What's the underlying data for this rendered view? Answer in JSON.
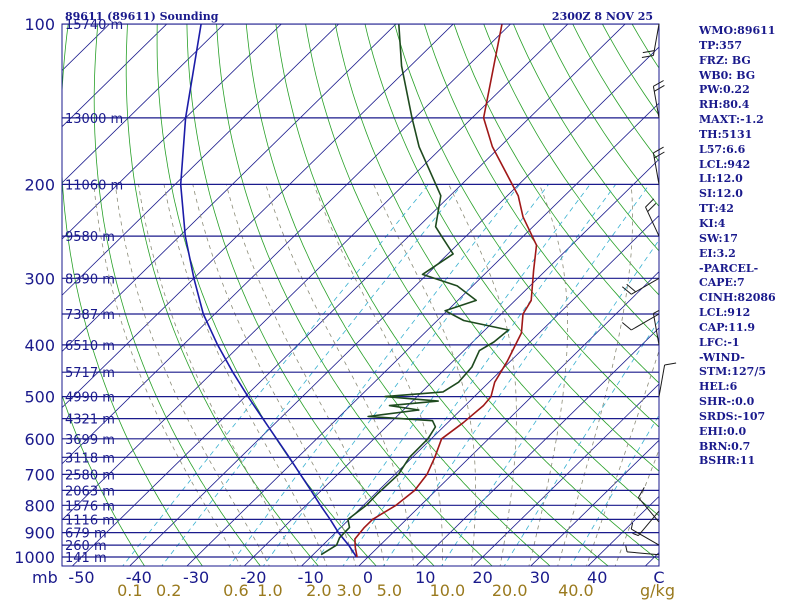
{
  "header": {
    "station": "89611 (89611) Sounding",
    "time": "2300Z  8 NOV 25"
  },
  "units": {
    "pressure": "mb",
    "mixing_ratio": "g/kg"
  },
  "stats": [
    "WMO:89611",
    "TP:357",
    "FRZ: BG",
    "WB0: BG",
    "PW:0.22",
    "RH:80.4",
    "MAXT:-1.2",
    "TH:5131",
    "L57:6.6",
    "LCL:942",
    "LI:12.0",
    "SI:12.0",
    "TT:42",
    "KI:4",
    "SW:17",
    "EI:3.2",
    "-PARCEL-",
    "CAPE:7",
    "CINH:82086",
    "LCL:912",
    "CAP:11.9",
    "LFC:-1",
    "-WIND-",
    "STM:127/5",
    "HEL:6",
    "SHR-:0.0",
    "SRDS:-107",
    "EHI:0.0",
    "BRN:0.7",
    "BSHR:11"
  ],
  "chart_data": {
    "type": "skew-t",
    "title": "89611 (89611) Sounding",
    "valid_time": "2300Z  8 NOV 25",
    "xlabel": "Temperature (C)",
    "ylabel": "Pressure (mb)",
    "pressure_ticks": [
      "100",
      "200",
      "300",
      "400",
      "500",
      "600",
      "700",
      "800",
      "900",
      "1000"
    ],
    "temperature_ticks": [
      "-50",
      "-40",
      "-30",
      "-20",
      "-10",
      "0",
      "10",
      "20",
      "30",
      "40"
    ],
    "mixing_ratio_ticks": [
      "0.1",
      "0.2",
      "0.6",
      "1.0",
      "2.0",
      "3.0",
      "5.0",
      "10.0",
      "20.0",
      "40.0"
    ],
    "height_labels": [
      {
        "p": 100,
        "label": "15740 m"
      },
      {
        "p": 150,
        "label": "13000 m"
      },
      {
        "p": 200,
        "label": "11060 m"
      },
      {
        "p": 250,
        "label": "9580 m"
      },
      {
        "p": 300,
        "label": "8390 m"
      },
      {
        "p": 350,
        "label": "7387 m"
      },
      {
        "p": 400,
        "label": "6510 m"
      },
      {
        "p": 450,
        "label": "5717 m"
      },
      {
        "p": 500,
        "label": "4990 m"
      },
      {
        "p": 550,
        "label": "4321 m"
      },
      {
        "p": 600,
        "label": "3699 m"
      },
      {
        "p": 650,
        "label": "3118 m"
      },
      {
        "p": 700,
        "label": "2580 m"
      },
      {
        "p": 750,
        "label": "2063 m"
      },
      {
        "p": 800,
        "label": "1576 m"
      },
      {
        "p": 850,
        "label": "1116 m"
      },
      {
        "p": 900,
        "label": "679 m"
      },
      {
        "p": 950,
        "label": "260 m"
      },
      {
        "p": 1000,
        "label": "141 m"
      }
    ],
    "temperature_profile": [
      {
        "p": 1000,
        "t": -1.9
      },
      {
        "p": 960,
        "t": -3.9
      },
      {
        "p": 925,
        "t": -5.5
      },
      {
        "p": 880,
        "t": -5.9
      },
      {
        "p": 850,
        "t": -5.9
      },
      {
        "p": 800,
        "t": -4.3
      },
      {
        "p": 750,
        "t": -3.7
      },
      {
        "p": 700,
        "t": -4.4
      },
      {
        "p": 650,
        "t": -6.1
      },
      {
        "p": 600,
        "t": -8.2
      },
      {
        "p": 560,
        "t": -7.3
      },
      {
        "p": 520,
        "t": -6.8
      },
      {
        "p": 500,
        "t": -7.1
      },
      {
        "p": 470,
        "t": -9.0
      },
      {
        "p": 430,
        "t": -10.5
      },
      {
        "p": 380,
        "t": -13.1
      },
      {
        "p": 350,
        "t": -16.2
      },
      {
        "p": 330,
        "t": -17.2
      },
      {
        "p": 290,
        "t": -22.1
      },
      {
        "p": 260,
        "t": -26.1
      },
      {
        "p": 230,
        "t": -33.5
      },
      {
        "p": 210,
        "t": -38.1
      },
      {
        "p": 170,
        "t": -51.3
      },
      {
        "p": 150,
        "t": -58.0
      },
      {
        "p": 100,
        "t": -71.5
      }
    ],
    "dewpoint_profile": [
      {
        "p": 990,
        "t": -8.6
      },
      {
        "p": 950,
        "t": -7.6
      },
      {
        "p": 920,
        "t": -8.4
      },
      {
        "p": 880,
        "t": -8.5
      },
      {
        "p": 850,
        "t": -10.2
      },
      {
        "p": 800,
        "t": -9.5
      },
      {
        "p": 760,
        "t": -9.6
      },
      {
        "p": 700,
        "t": -9.4
      },
      {
        "p": 650,
        "t": -10.5
      },
      {
        "p": 600,
        "t": -10.6
      },
      {
        "p": 570,
        "t": -11.4
      },
      {
        "p": 555,
        "t": -13.0
      },
      {
        "p": 545,
        "t": -25.0
      },
      {
        "p": 530,
        "t": -17.3
      },
      {
        "p": 520,
        "t": -23.2
      },
      {
        "p": 510,
        "t": -15.5
      },
      {
        "p": 500,
        "t": -25.6
      },
      {
        "p": 490,
        "t": -16.3
      },
      {
        "p": 470,
        "t": -15.3
      },
      {
        "p": 440,
        "t": -15.7
      },
      {
        "p": 410,
        "t": -17.3
      },
      {
        "p": 395,
        "t": -16.3
      },
      {
        "p": 375,
        "t": -15.9
      },
      {
        "p": 360,
        "t": -25.4
      },
      {
        "p": 345,
        "t": -30.4
      },
      {
        "p": 330,
        "t": -26.8
      },
      {
        "p": 310,
        "t": -32.7
      },
      {
        "p": 295,
        "t": -40.8
      },
      {
        "p": 270,
        "t": -39.1
      },
      {
        "p": 250,
        "t": -44.3
      },
      {
        "p": 240,
        "t": -47.0
      },
      {
        "p": 210,
        "t": -51.6
      },
      {
        "p": 170,
        "t": -64.1
      },
      {
        "p": 150,
        "t": -70.5
      },
      {
        "p": 120,
        "t": -81.5
      },
      {
        "p": 100,
        "t": -89.5
      }
    ],
    "parcel_path": [
      {
        "p": 1000,
        "t": -2.0
      },
      {
        "p": 950,
        "t": -5.5
      },
      {
        "p": 900,
        "t": -9.5
      },
      {
        "p": 850,
        "t": -13.3
      },
      {
        "p": 800,
        "t": -17.5
      },
      {
        "p": 750,
        "t": -21.8
      },
      {
        "p": 700,
        "t": -26.5
      },
      {
        "p": 650,
        "t": -31.5
      },
      {
        "p": 600,
        "t": -37.0
      },
      {
        "p": 550,
        "t": -43.0
      },
      {
        "p": 500,
        "t": -49.5
      },
      {
        "p": 450,
        "t": -56.5
      },
      {
        "p": 400,
        "t": -64.0
      },
      {
        "p": 350,
        "t": -72.0
      },
      {
        "p": 300,
        "t": -80.0
      },
      {
        "p": 250,
        "t": -89.0
      },
      {
        "p": 200,
        "t": -99.0
      },
      {
        "p": 150,
        "t": -110.0
      },
      {
        "p": 100,
        "t": -124.0
      }
    ],
    "wind_barbs": [
      {
        "p": 990,
        "dir": 275,
        "spd": 5
      },
      {
        "p": 950,
        "dir": 300,
        "spd": 5
      },
      {
        "p": 860,
        "dir": 320,
        "spd": 10
      },
      {
        "p": 820,
        "dir": 220,
        "spd": 5
      },
      {
        "p": 500,
        "dir": 10,
        "spd": 10
      },
      {
        "p": 400,
        "dir": 350,
        "spd": 5
      },
      {
        "p": 350,
        "dir": 240,
        "spd": 10
      },
      {
        "p": 300,
        "dir": 240,
        "spd": 20
      },
      {
        "p": 250,
        "dir": 335,
        "spd": 20
      },
      {
        "p": 200,
        "dir": 350,
        "spd": 20
      },
      {
        "p": 150,
        "dir": 350,
        "spd": 20
      },
      {
        "p": 100,
        "dir": 190,
        "spd": 20
      }
    ]
  }
}
